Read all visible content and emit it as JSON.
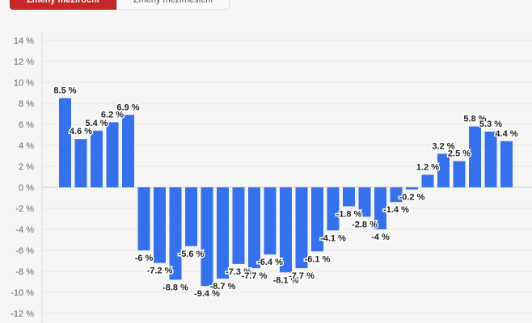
{
  "buttons": [
    {
      "label": "Změny meziroční",
      "active": true
    },
    {
      "label": "Změny meziměsíční",
      "active": false
    }
  ],
  "chart_data": {
    "type": "bar",
    "ylim": [
      -12,
      14
    ],
    "yticks": [
      14,
      12,
      10,
      8,
      6,
      4,
      2,
      0,
      -2,
      -4,
      -6,
      -8,
      -10,
      -12
    ],
    "ytick_suffix": " %",
    "values": [
      8.5,
      4.6,
      5.4,
      6.2,
      6.9,
      -6,
      -7.2,
      -8.8,
      -5.6,
      -9.4,
      -8.7,
      -7.3,
      -7.7,
      -6.4,
      -8.1,
      -7.7,
      -6.1,
      -4.1,
      -1.8,
      -2.8,
      -4,
      -1.4,
      -0.2,
      1.2,
      3.2,
      2.5,
      5.8,
      5.3,
      4.4
    ],
    "bar_color": "#3471eb",
    "grid": true
  }
}
